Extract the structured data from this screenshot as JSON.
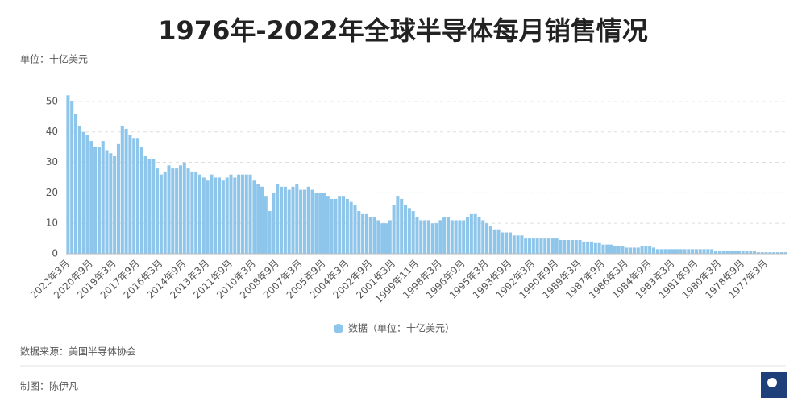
{
  "chart_data": {
    "type": "bar",
    "title": "1976年-2022年全球半导体每月销售情况",
    "unit_note": "单位：十亿美元",
    "source": "数据来源：美国半导体协会",
    "credit": "制图：陈伊凡",
    "categories": [
      "2022年3月",
      null,
      null,
      null,
      null,
      null,
      "2020年9月",
      null,
      null,
      null,
      null,
      null,
      "2019年3月",
      null,
      null,
      null,
      null,
      null,
      "2017年9月",
      null,
      null,
      null,
      null,
      null,
      "2016年3月",
      null,
      null,
      null,
      null,
      null,
      "2014年9月",
      null,
      null,
      null,
      null,
      null,
      "2013年3月",
      null,
      null,
      null,
      null,
      null,
      "2011年9月",
      null,
      null,
      null,
      null,
      null,
      "2010年3月",
      null,
      null,
      null,
      null,
      null,
      "2008年9月",
      null,
      null,
      null,
      null,
      null,
      "2007年3月",
      null,
      null,
      null,
      null,
      null,
      "2005年9月",
      null,
      null,
      null,
      null,
      null,
      "2004年3月",
      null,
      null,
      null,
      null,
      null,
      "2002年9月",
      null,
      null,
      null,
      null,
      null,
      "2001年3月",
      null,
      null,
      null,
      null,
      null,
      "1999年11月",
      null,
      null,
      null,
      null,
      null,
      "1998年3月",
      null,
      null,
      null,
      null,
      null,
      "1996年9月",
      null,
      null,
      null,
      null,
      null,
      "1995年3月",
      null,
      null,
      null,
      null,
      null,
      "1993年9月",
      null,
      null,
      null,
      null,
      null,
      "1992年3月",
      null,
      null,
      null,
      null,
      null,
      "1990年9月",
      null,
      null,
      null,
      null,
      null,
      "1989年3月",
      null,
      null,
      null,
      null,
      null,
      "1987年9月",
      null,
      null,
      null,
      null,
      null,
      "1986年3月",
      null,
      null,
      null,
      null,
      null,
      "1984年9月",
      null,
      null,
      null,
      null,
      null,
      "1983年3月",
      null,
      null,
      null,
      null,
      null,
      "1981年9月",
      null,
      null,
      null,
      null,
      null,
      "1980年3月",
      null,
      null,
      null,
      null,
      null,
      "1978年9月",
      null,
      null,
      null,
      null,
      null,
      "1977年3月",
      null,
      null,
      null,
      null,
      null
    ],
    "series": [
      {
        "name": "数据（单位：十亿美元）",
        "color": "#8ec5ea",
        "values": [
          52,
          50,
          46,
          42,
          40,
          39,
          37,
          35,
          35,
          37,
          34,
          33,
          32,
          36,
          42,
          41,
          39,
          38,
          38,
          35,
          32,
          31,
          31,
          28,
          26,
          27,
          29,
          28,
          28,
          29,
          30,
          28,
          27,
          27,
          26,
          25,
          24,
          26,
          25,
          25,
          24,
          25,
          26,
          25,
          26,
          26,
          26,
          26,
          24,
          23,
          22,
          19,
          14,
          20,
          23,
          22,
          22,
          21,
          22,
          23,
          21,
          21,
          22,
          21,
          20,
          20,
          20,
          19,
          18,
          18,
          19,
          19,
          18,
          17,
          16,
          14,
          13,
          13,
          12,
          12,
          11,
          10,
          10,
          11,
          16,
          19,
          18,
          16,
          15,
          14,
          12,
          11,
          11,
          11,
          10,
          10,
          11,
          12,
          12,
          11,
          11,
          11,
          11,
          12,
          13,
          13,
          12,
          11,
          10,
          9,
          8,
          8,
          7,
          7,
          7,
          6,
          6,
          6,
          5,
          5,
          5,
          5,
          5,
          5,
          5,
          5,
          5,
          4.5,
          4.5,
          4.5,
          4.5,
          4.5,
          4.5,
          4,
          4,
          4,
          3.5,
          3.5,
          3,
          3,
          3,
          2.5,
          2.5,
          2.5,
          2,
          2,
          2,
          2,
          2.5,
          2.5,
          2.5,
          2,
          1.5,
          1.5,
          1.5,
          1.5,
          1.5,
          1.5,
          1.5,
          1.5,
          1.5,
          1.5,
          1.5,
          1.5,
          1.5,
          1.5,
          1.5,
          1,
          1,
          1,
          1,
          1,
          1,
          1,
          1,
          1,
          1,
          1,
          0.5,
          0.5,
          0.5,
          0.5,
          0.5,
          0.5,
          0.5,
          0.5
        ]
      }
    ],
    "ylim": [
      0,
      55
    ],
    "yticks": [
      0,
      10,
      20,
      30,
      40,
      50
    ],
    "grid": true,
    "legend": "bottom"
  }
}
